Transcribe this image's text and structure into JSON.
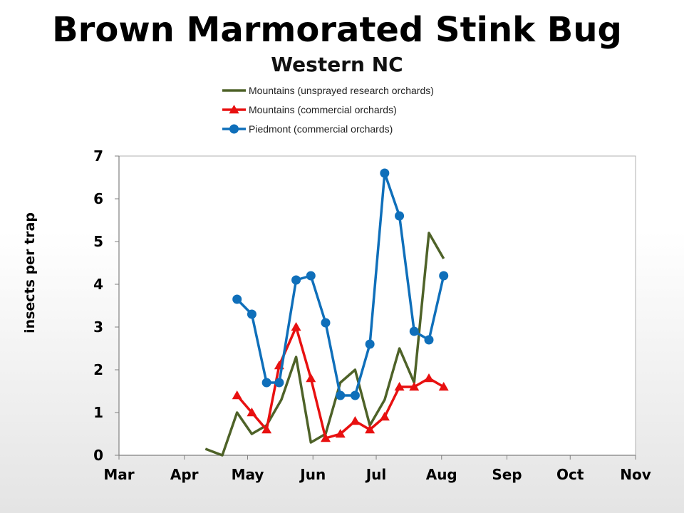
{
  "chart_data": {
    "type": "line",
    "title": "Brown Marmorated Stink Bug",
    "subtitle": "Western NC",
    "xlabel": "",
    "ylabel": "insects per trap",
    "ylim": [
      0,
      7
    ],
    "yticks": [
      "0",
      "1",
      "2",
      "3",
      "4",
      "5",
      "6",
      "7"
    ],
    "xlim": [
      "2012-03-01",
      "2012-11-01"
    ],
    "xticks": [
      {
        "label": "Mar",
        "date": "2012-03-01"
      },
      {
        "label": "Apr",
        "date": "2012-04-01"
      },
      {
        "label": "May",
        "date": "2012-05-01"
      },
      {
        "label": "Jun",
        "date": "2012-06-01"
      },
      {
        "label": "Jul",
        "date": "2012-07-01"
      },
      {
        "label": "Aug",
        "date": "2012-08-01"
      },
      {
        "label": "Sep",
        "date": "2012-09-01"
      },
      {
        "label": "Oct",
        "date": "2012-10-01"
      },
      {
        "label": "Nov",
        "date": "2012-11-01"
      }
    ],
    "grid": false,
    "legend_position": "top",
    "series": [
      {
        "name": "Mountains (unsprayed research orchards)",
        "color": "#4e6228",
        "marker": "none",
        "points": [
          {
            "x": "2012-04-11",
            "y": 0.15
          },
          {
            "x": "2012-04-19",
            "y": 0.0
          },
          {
            "x": "2012-04-26",
            "y": 1.0
          },
          {
            "x": "2012-05-03",
            "y": 0.5
          },
          {
            "x": "2012-05-10",
            "y": 0.7
          },
          {
            "x": "2012-05-17",
            "y": 1.3
          },
          {
            "x": "2012-05-24",
            "y": 2.3
          },
          {
            "x": "2012-05-31",
            "y": 0.3
          },
          {
            "x": "2012-06-07",
            "y": 0.5
          },
          {
            "x": "2012-06-14",
            "y": 1.7
          },
          {
            "x": "2012-06-21",
            "y": 2.0
          },
          {
            "x": "2012-06-28",
            "y": 0.7
          },
          {
            "x": "2012-07-05",
            "y": 1.3
          },
          {
            "x": "2012-07-12",
            "y": 2.5
          },
          {
            "x": "2012-07-19",
            "y": 1.7
          },
          {
            "x": "2012-07-26",
            "y": 5.2
          },
          {
            "x": "2012-08-02",
            "y": 4.6
          }
        ]
      },
      {
        "name": "Mountains (commercial orchards)",
        "color": "#e81010",
        "marker": "triangle",
        "points": [
          {
            "x": "2012-04-26",
            "y": 1.4
          },
          {
            "x": "2012-05-03",
            "y": 1.0
          },
          {
            "x": "2012-05-10",
            "y": 0.6
          },
          {
            "x": "2012-05-16",
            "y": 2.1
          },
          {
            "x": "2012-05-24",
            "y": 3.0
          },
          {
            "x": "2012-05-31",
            "y": 1.8
          },
          {
            "x": "2012-06-07",
            "y": 0.4
          },
          {
            "x": "2012-06-14",
            "y": 0.5
          },
          {
            "x": "2012-06-21",
            "y": 0.8
          },
          {
            "x": "2012-06-28",
            "y": 0.6
          },
          {
            "x": "2012-07-05",
            "y": 0.9
          },
          {
            "x": "2012-07-12",
            "y": 1.6
          },
          {
            "x": "2012-07-19",
            "y": 1.6
          },
          {
            "x": "2012-07-26",
            "y": 1.8
          },
          {
            "x": "2012-08-02",
            "y": 1.6
          }
        ]
      },
      {
        "name": "Piedmont (commercial orchards)",
        "color": "#0f6fba",
        "marker": "circle",
        "points": [
          {
            "x": "2012-04-26",
            "y": 3.65
          },
          {
            "x": "2012-05-03",
            "y": 3.3
          },
          {
            "x": "2012-05-10",
            "y": 1.7
          },
          {
            "x": "2012-05-16",
            "y": 1.7
          },
          {
            "x": "2012-05-24",
            "y": 4.1
          },
          {
            "x": "2012-05-31",
            "y": 4.2
          },
          {
            "x": "2012-06-07",
            "y": 3.1
          },
          {
            "x": "2012-06-14",
            "y": 1.4
          },
          {
            "x": "2012-06-21",
            "y": 1.4
          },
          {
            "x": "2012-06-28",
            "y": 2.6
          },
          {
            "x": "2012-07-05",
            "y": 6.6
          },
          {
            "x": "2012-07-12",
            "y": 5.6
          },
          {
            "x": "2012-07-19",
            "y": 2.9
          },
          {
            "x": "2012-07-26",
            "y": 2.7
          },
          {
            "x": "2012-08-02",
            "y": 4.2
          }
        ]
      }
    ]
  }
}
